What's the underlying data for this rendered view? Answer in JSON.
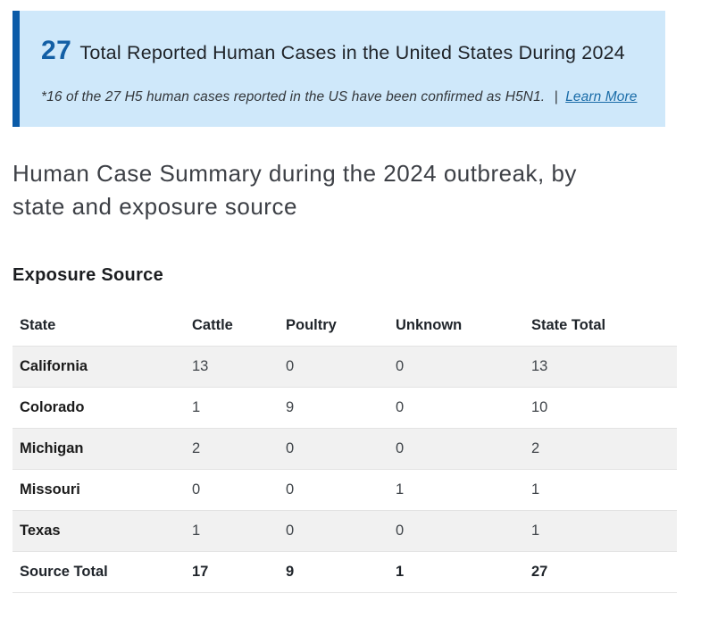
{
  "callout": {
    "count": "27",
    "title": "Total Reported Human Cases in the United States During 2024",
    "footnote": "*16 of the 27 H5 human cases reported in the US have been confirmed as H5N1.",
    "separator": "|",
    "link_label": "Learn More"
  },
  "heading": "Human Case Summary during the 2024 outbreak, by state and exposure source",
  "section_title": "Exposure Source",
  "table": {
    "columns": [
      "State",
      "Cattle",
      "Poultry",
      "Unknown",
      "State Total"
    ],
    "rows": [
      [
        "California",
        13,
        0,
        0,
        13
      ],
      [
        "Colorado",
        1,
        9,
        0,
        10
      ],
      [
        "Michigan",
        2,
        0,
        0,
        2
      ],
      [
        "Missouri",
        0,
        0,
        1,
        1
      ],
      [
        "Texas",
        1,
        0,
        0,
        1
      ]
    ],
    "footer": [
      "Source Total",
      17,
      9,
      1,
      27
    ]
  },
  "colors": {
    "callout_background": "#cfe8fa",
    "callout_stripe": "#0b5ba8",
    "count_blue": "#135fa5",
    "link_blue": "#1a6ca8",
    "row_stripe": "#f1f1f1",
    "row_border": "#e3e3e3"
  }
}
